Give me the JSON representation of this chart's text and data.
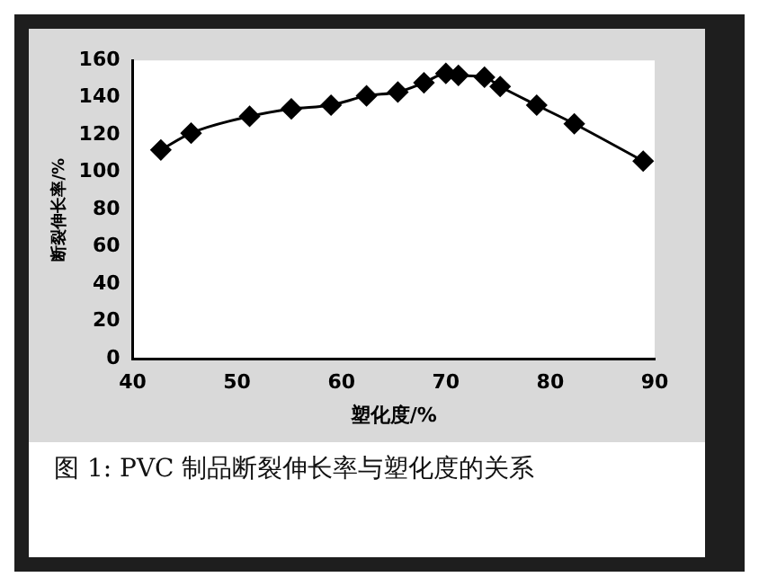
{
  "chart_data": {
    "type": "line",
    "title": "图 1: PVC 制品断裂伸长率与塑化度的关系",
    "xlabel": "塑化度/%",
    "ylabel": "断裂伸长率/%",
    "x": [
      42.7,
      45.6,
      51.2,
      55.2,
      59,
      62.4,
      65.4,
      67.9,
      70,
      71.2,
      73.7,
      75.2,
      78.7,
      82.3,
      88.9
    ],
    "values": [
      112,
      121,
      130,
      134,
      136,
      141,
      143,
      148,
      153,
      152,
      151,
      146,
      136,
      126,
      106
    ],
    "color": "#000000",
    "marker": "diamond",
    "line_style": "solid",
    "grid": false,
    "legend": false,
    "xlim": [
      40,
      90
    ],
    "xticks": [
      40,
      50,
      60,
      70,
      80,
      90
    ],
    "ylim": [
      0,
      160
    ],
    "yticks": [
      0,
      20,
      40,
      60,
      80,
      100,
      120,
      140,
      160
    ]
  }
}
